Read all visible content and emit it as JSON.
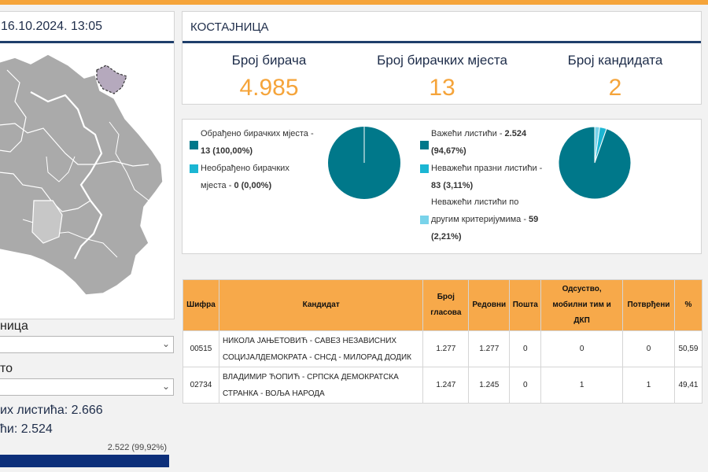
{
  "left": {
    "timestamp": "16.10.2024. 13:05",
    "municipality_label": "ница",
    "municipality_value": "",
    "place_label": "то",
    "place_value": "",
    "ballots_total_label": "их листића: 2.666",
    "ballots_valid_label": "ћи: 2.524",
    "progress_text": "2.522 (99,92%)",
    "progress_fraction": 0.9992
  },
  "summary": {
    "title": "КОСТАЈНИЦА",
    "voters_label": "Број бирача",
    "voters_value": "4.985",
    "stations_label": "Број бирачких мјеста",
    "stations_value": "13",
    "candidates_label": "Број кандидата",
    "candidates_value": "2"
  },
  "stations": {
    "processed_a": "Обрађено бирачких мјеста -",
    "processed_b": "13 (100,00%)",
    "unprocessed_a": "Необрађено бирачких",
    "unprocessed_b": "мјеста - ",
    "unprocessed_c": "0 (0,00%)"
  },
  "ballots": {
    "valid_a": "Важећи листићи - ",
    "valid_b": "2.524",
    "valid_c": "(94,67%)",
    "blank_a": "Неважећи празни листићи -",
    "blank_b": "83 (3,11%)",
    "other_a": "Неважећи листићи по",
    "other_b": "другим критеријумима - ",
    "other_c": "59",
    "other_d": "(2,21%)"
  },
  "chart_data": [
    {
      "type": "pie",
      "categories": [
        "Обрађено бирачких мјеста",
        "Необрађено бирачких мјеста"
      ],
      "values": [
        100.0,
        0.0
      ],
      "title": ""
    },
    {
      "type": "pie",
      "categories": [
        "Важећи листићи",
        "Неважећи празни листићи",
        "Неважећи листићи по другим критеријумима"
      ],
      "values": [
        94.67,
        3.11,
        2.21
      ],
      "title": ""
    }
  ],
  "colors": {
    "accent": "#f5a43a",
    "navy": "#1f3f6b",
    "teal": "#00788a",
    "cyan": "#1bb6d3",
    "light_cyan": "#79d3ea",
    "progress": "#0d2f7a"
  },
  "table": {
    "headers": {
      "code": "Шифра",
      "candidate": "Кандидат",
      "votes_a": "Број",
      "votes_b": "гласова",
      "regular": "Редовни",
      "post": "Пошта",
      "absent_a": "Одсуство,",
      "absent_b": "мобилни тим и",
      "absent_c": "ДКП",
      "confirmed": "Потврђени",
      "percent": "%"
    },
    "rows": [
      {
        "code": "00515",
        "cand_a": "НИКОЛА ЈАЊЕТОВИЋ - САВЕЗ НЕЗАВИСНИХ",
        "cand_b": "СОЦИЈАЛДЕМОКРАТА - СНСД - МИЛОРАД ДОДИК",
        "votes": "1.277",
        "regular": "1.277",
        "post": "0",
        "absent": "0",
        "confirmed": "0",
        "percent": "50,59"
      },
      {
        "code": "02734",
        "cand_a": "ВЛАДИМИР ЋОПИЋ - СРПСКА ДЕМОКРАТСКА",
        "cand_b": "СТРАНКА - ВОЉА НАРОДА",
        "votes": "1.247",
        "regular": "1.245",
        "post": "0",
        "absent": "1",
        "confirmed": "1",
        "percent": "49,41"
      }
    ]
  }
}
